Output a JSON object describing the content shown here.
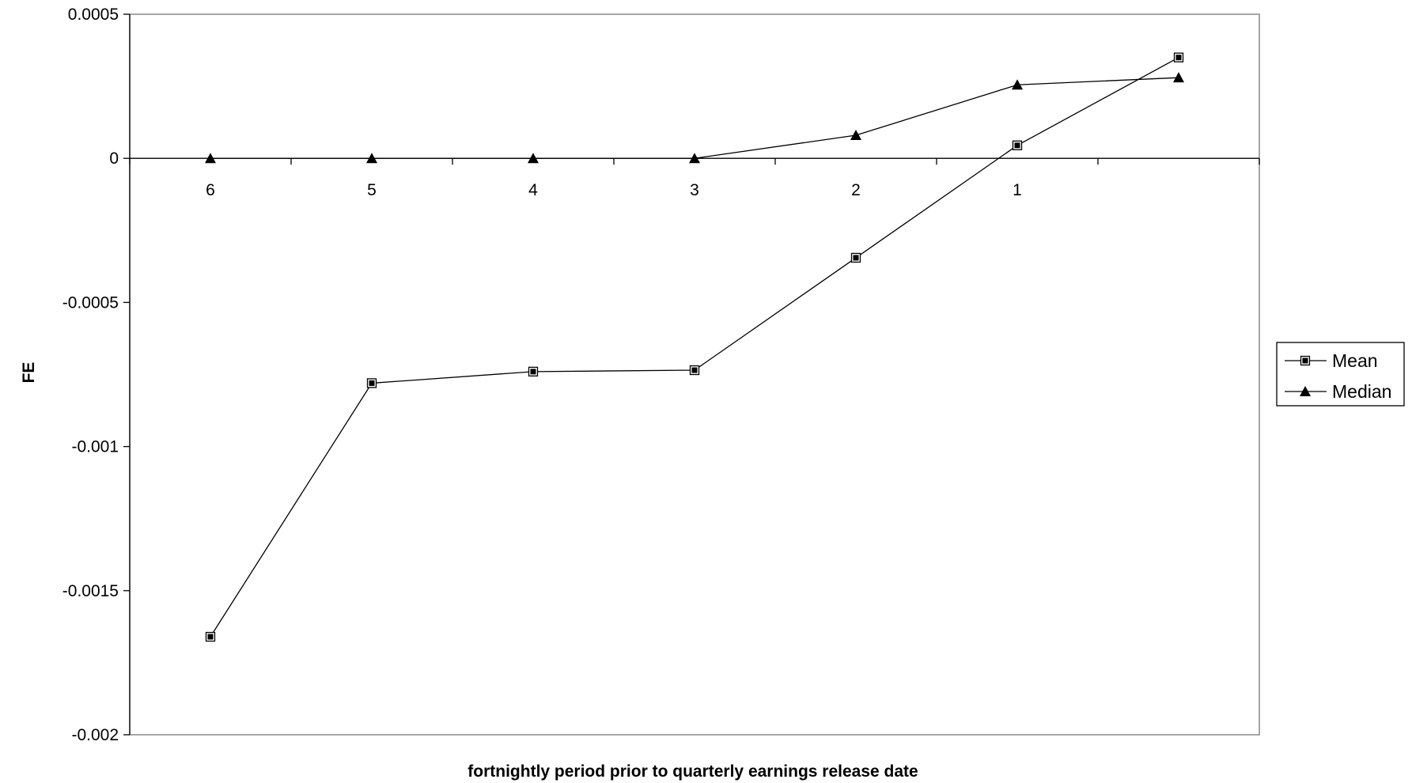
{
  "chart_data": {
    "type": "line",
    "title": "",
    "xlabel": "fortnightly period prior to quarterly earnings release date",
    "ylabel": "FE",
    "categories": [
      "6",
      "5",
      "4",
      "3",
      "2",
      "1",
      ""
    ],
    "ylim": [
      -0.002,
      0.0005
    ],
    "yticks": [
      0.0005,
      0,
      -0.0005,
      -0.001,
      -0.0015,
      -0.002
    ],
    "ytick_labels": [
      "0.0005",
      "0",
      "-0.0005",
      "-0.001",
      "-0.0015",
      "-0.002"
    ],
    "grid": false,
    "legend_position": "right",
    "series": [
      {
        "name": "Mean",
        "marker": "square",
        "values": [
          -0.00166,
          -0.00078,
          -0.00074,
          -0.000735,
          -0.000345,
          4.5e-05,
          0.00035
        ]
      },
      {
        "name": "Median",
        "marker": "triangle",
        "values": [
          0,
          0,
          0,
          0,
          8e-05,
          0.000255,
          0.00028
        ]
      }
    ]
  }
}
